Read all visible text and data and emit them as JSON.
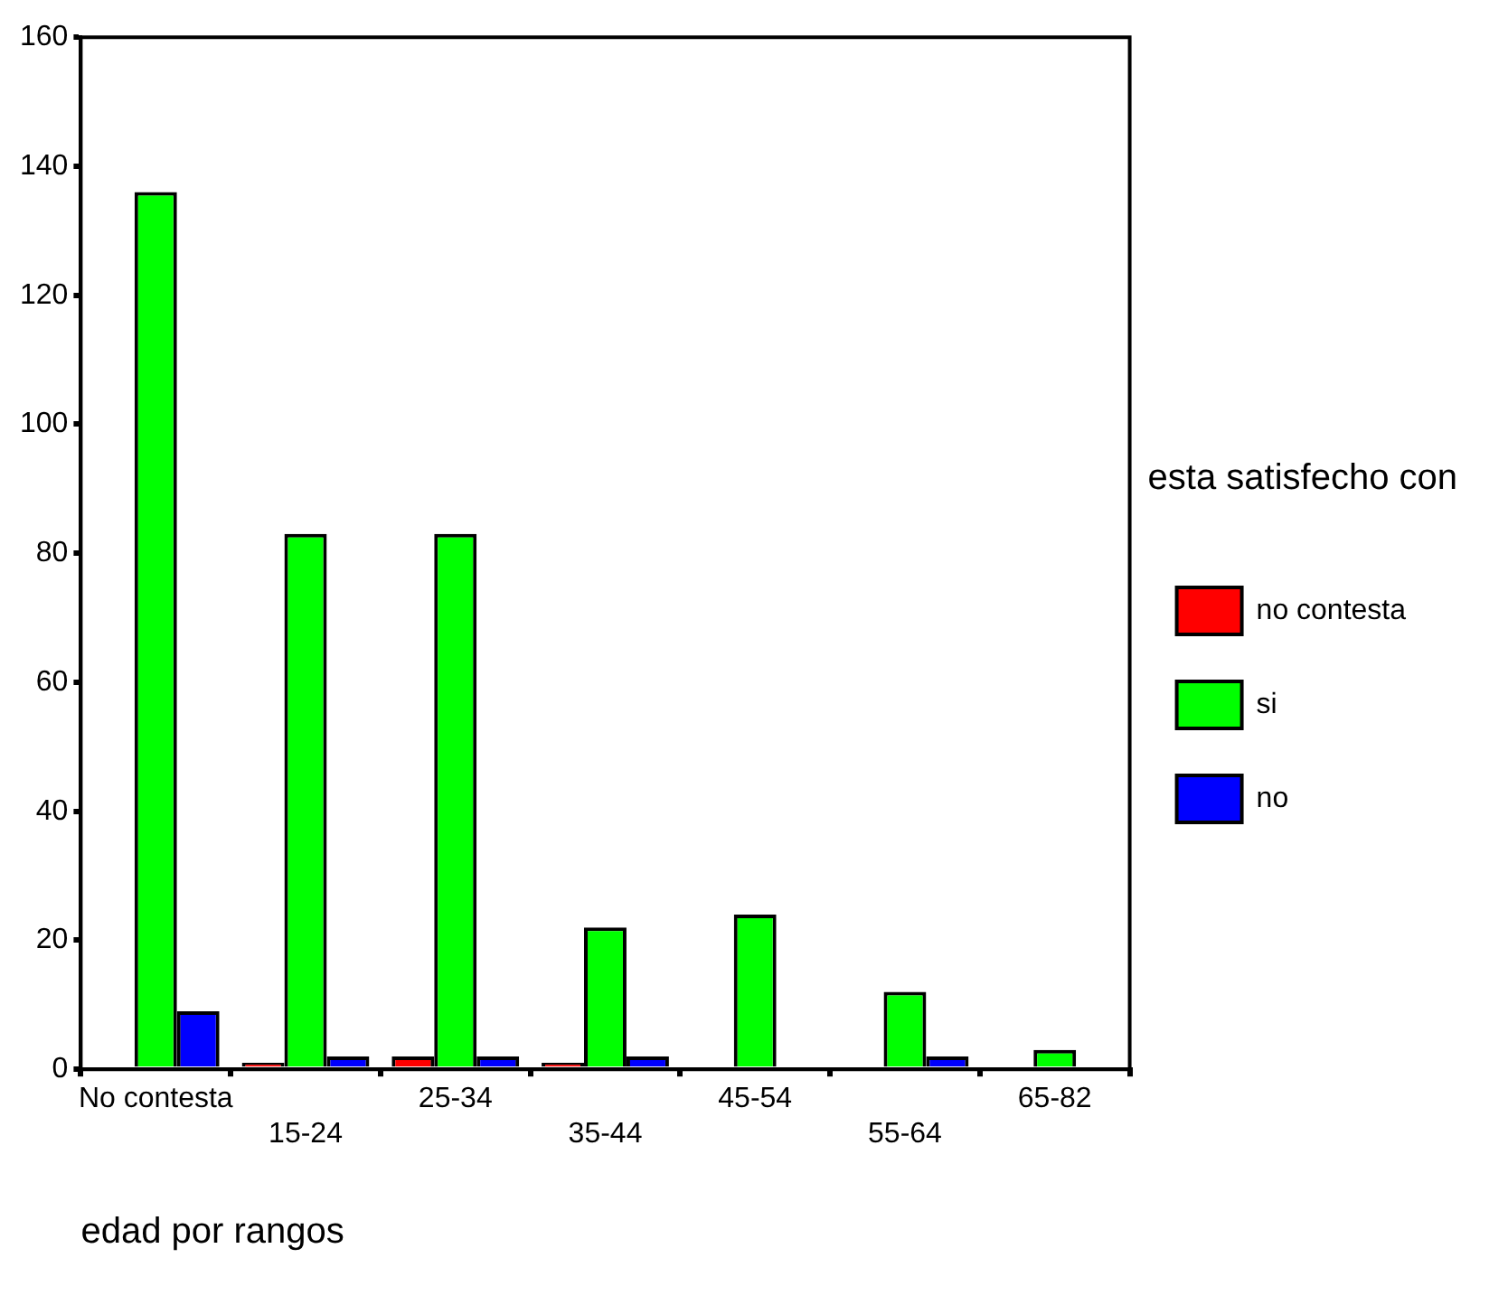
{
  "chart_data": {
    "type": "bar",
    "xlabel": "edad por rangos",
    "legend_title": "esta satisfecho con",
    "categories": [
      "No contesta",
      "15-24",
      "25-34",
      "35-44",
      "45-54",
      "55-64",
      "65-82"
    ],
    "series": [
      {
        "name": "no contesta",
        "color": "#ff0000",
        "values": [
          0,
          1,
          2,
          1,
          0,
          0,
          0
        ]
      },
      {
        "name": "si",
        "color": "#00ff00",
        "values": [
          136,
          83,
          83,
          22,
          24,
          12,
          3
        ]
      },
      {
        "name": "no",
        "color": "#0000ff",
        "values": [
          9,
          2,
          2,
          2,
          0,
          2,
          0
        ]
      }
    ],
    "ylim": [
      0,
      160
    ],
    "yticks": [
      0,
      20,
      40,
      60,
      80,
      100,
      120,
      140,
      160
    ],
    "grid": false,
    "legend": "right"
  }
}
